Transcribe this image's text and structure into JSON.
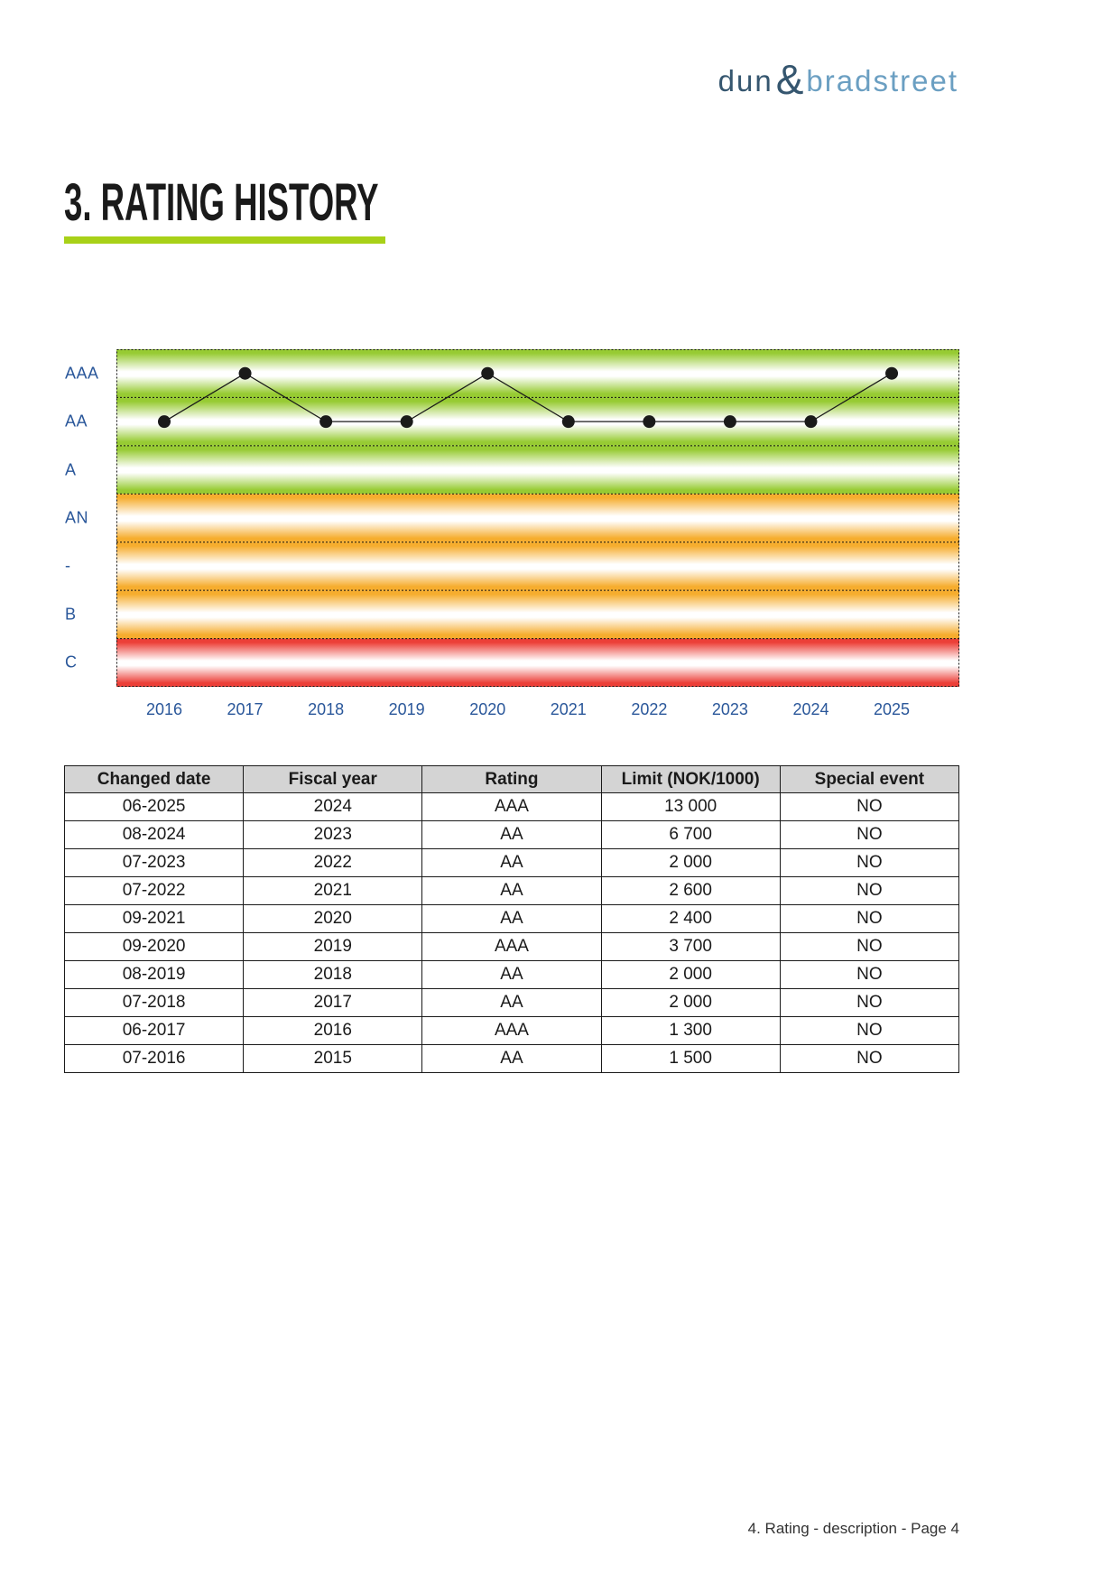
{
  "logo": {
    "word1": "dun",
    "ampersand": "&",
    "word2": "bradstreet"
  },
  "page": {
    "title": "3. RATING HISTORY",
    "footer": "4. Rating - description - Page 4"
  },
  "accent": {
    "underline_green": "#a8d118",
    "logo_dark": "#35566f",
    "logo_light": "#6b9fc2"
  },
  "chart_data": {
    "type": "line",
    "title": "Rating history 2016-2025",
    "categories": [
      "2016",
      "2017",
      "2018",
      "2019",
      "2020",
      "2021",
      "2022",
      "2023",
      "2024",
      "2025"
    ],
    "series": [
      {
        "name": "Rating",
        "values": [
          "AA",
          "AAA",
          "AA",
          "AA",
          "AAA",
          "AA",
          "AA",
          "AA",
          "AA",
          "AAA"
        ]
      }
    ],
    "y_axis": {
      "bands": [
        {
          "label": "AAA",
          "color": "#97cb33"
        },
        {
          "label": "AA",
          "color": "#97cb33"
        },
        {
          "label": "A",
          "color": "#97cb33"
        },
        {
          "label": "AN",
          "color": "#f6ad2e"
        },
        {
          "label": "-",
          "color": "#f6ad2e"
        },
        {
          "label": "B",
          "color": "#f6ad2e"
        },
        {
          "label": "C",
          "color": "#ec3f38"
        }
      ]
    },
    "grid": "dotted band separators and dotted outer border",
    "legend": "none",
    "colors": {
      "point": "#1a1a1a",
      "line": "#1a1a1a",
      "axis_label": "#2a579a"
    }
  },
  "table": {
    "headers": [
      "Changed date",
      "Fiscal year",
      "Rating",
      "Limit (NOK/1000)",
      "Special event"
    ],
    "rows": [
      [
        "06-2025",
        "2024",
        "AAA",
        "13 000",
        "NO"
      ],
      [
        "08-2024",
        "2023",
        "AA",
        "6 700",
        "NO"
      ],
      [
        "07-2023",
        "2022",
        "AA",
        "2 000",
        "NO"
      ],
      [
        "07-2022",
        "2021",
        "AA",
        "2 600",
        "NO"
      ],
      [
        "09-2021",
        "2020",
        "AA",
        "2 400",
        "NO"
      ],
      [
        "09-2020",
        "2019",
        "AAA",
        "3 700",
        "NO"
      ],
      [
        "08-2019",
        "2018",
        "AA",
        "2 000",
        "NO"
      ],
      [
        "07-2018",
        "2017",
        "AA",
        "2 000",
        "NO"
      ],
      [
        "06-2017",
        "2016",
        "AAA",
        "1 300",
        "NO"
      ],
      [
        "07-2016",
        "2015",
        "AA",
        "1 500",
        "NO"
      ]
    ]
  }
}
